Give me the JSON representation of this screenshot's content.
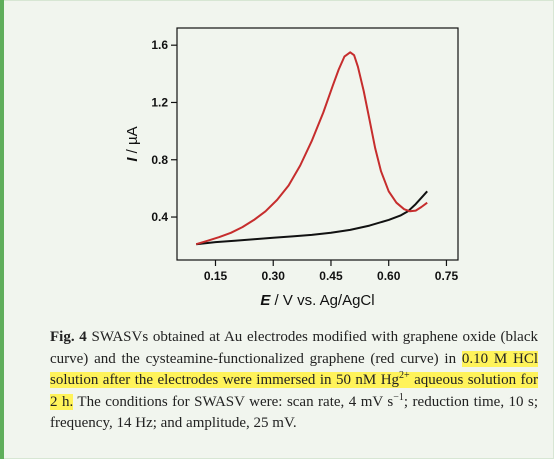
{
  "colors": {
    "black_curve": "#111111",
    "red_curve": "#c62d2d",
    "highlight": "#fff35a",
    "background": "#f1f5ee"
  },
  "chart_data": {
    "type": "line",
    "xlabel_italic": "E",
    "xlabel_rest": " / V vs. Ag/AgCl",
    "ylabel_italic": "I",
    "ylabel_rest": " / µA",
    "xlim": [
      0.05,
      0.78
    ],
    "ylim": [
      0.1,
      1.72
    ],
    "xticks": [
      0.15,
      0.3,
      0.45,
      0.6,
      0.75
    ],
    "xtick_labels": [
      "0.15",
      "0.30",
      "0.45",
      "0.60",
      "0.75"
    ],
    "yticks": [
      0.4,
      0.8,
      1.2,
      1.6
    ],
    "ytick_labels": [
      "0.4",
      "0.8",
      "1.2",
      "1.6"
    ],
    "series": [
      {
        "color": "#111111",
        "x": [
          0.1,
          0.15,
          0.2,
          0.25,
          0.3,
          0.35,
          0.4,
          0.45,
          0.5,
          0.55,
          0.6,
          0.63,
          0.65,
          0.67,
          0.69,
          0.7
        ],
        "y": [
          0.21,
          0.225,
          0.235,
          0.245,
          0.255,
          0.265,
          0.275,
          0.29,
          0.31,
          0.34,
          0.38,
          0.41,
          0.44,
          0.49,
          0.55,
          0.58
        ]
      },
      {
        "color": "#c62d2d",
        "x": [
          0.1,
          0.13,
          0.16,
          0.19,
          0.22,
          0.25,
          0.28,
          0.31,
          0.34,
          0.37,
          0.4,
          0.43,
          0.455,
          0.47,
          0.485,
          0.5,
          0.51,
          0.52,
          0.535,
          0.55,
          0.565,
          0.58,
          0.6,
          0.62,
          0.64,
          0.655,
          0.67,
          0.685,
          0.7
        ],
        "y": [
          0.21,
          0.235,
          0.26,
          0.29,
          0.33,
          0.38,
          0.44,
          0.52,
          0.62,
          0.76,
          0.93,
          1.13,
          1.32,
          1.43,
          1.52,
          1.55,
          1.53,
          1.45,
          1.28,
          1.08,
          0.88,
          0.72,
          0.58,
          0.5,
          0.455,
          0.44,
          0.445,
          0.47,
          0.5
        ]
      }
    ]
  },
  "caption": {
    "fig_label": "Fig. 4",
    "p1": " SWASVs obtained at Au electrodes modified with graphene oxide (black curve) and the cysteamine-functionalized graphene (red curve) in ",
    "h1": "0.10 M HCl solution after the electrodes were immersed in 50 nM Hg",
    "h1_sup": "2+",
    "h1_end": " aqueous solution for 2 h.",
    "p2": " The conditions for SWASV were: scan rate, 4 mV s",
    "p2_sup": "−1",
    "p3": "; reduction time, 10 s; frequency, 14 Hz; and amplitude, 25 mV."
  }
}
